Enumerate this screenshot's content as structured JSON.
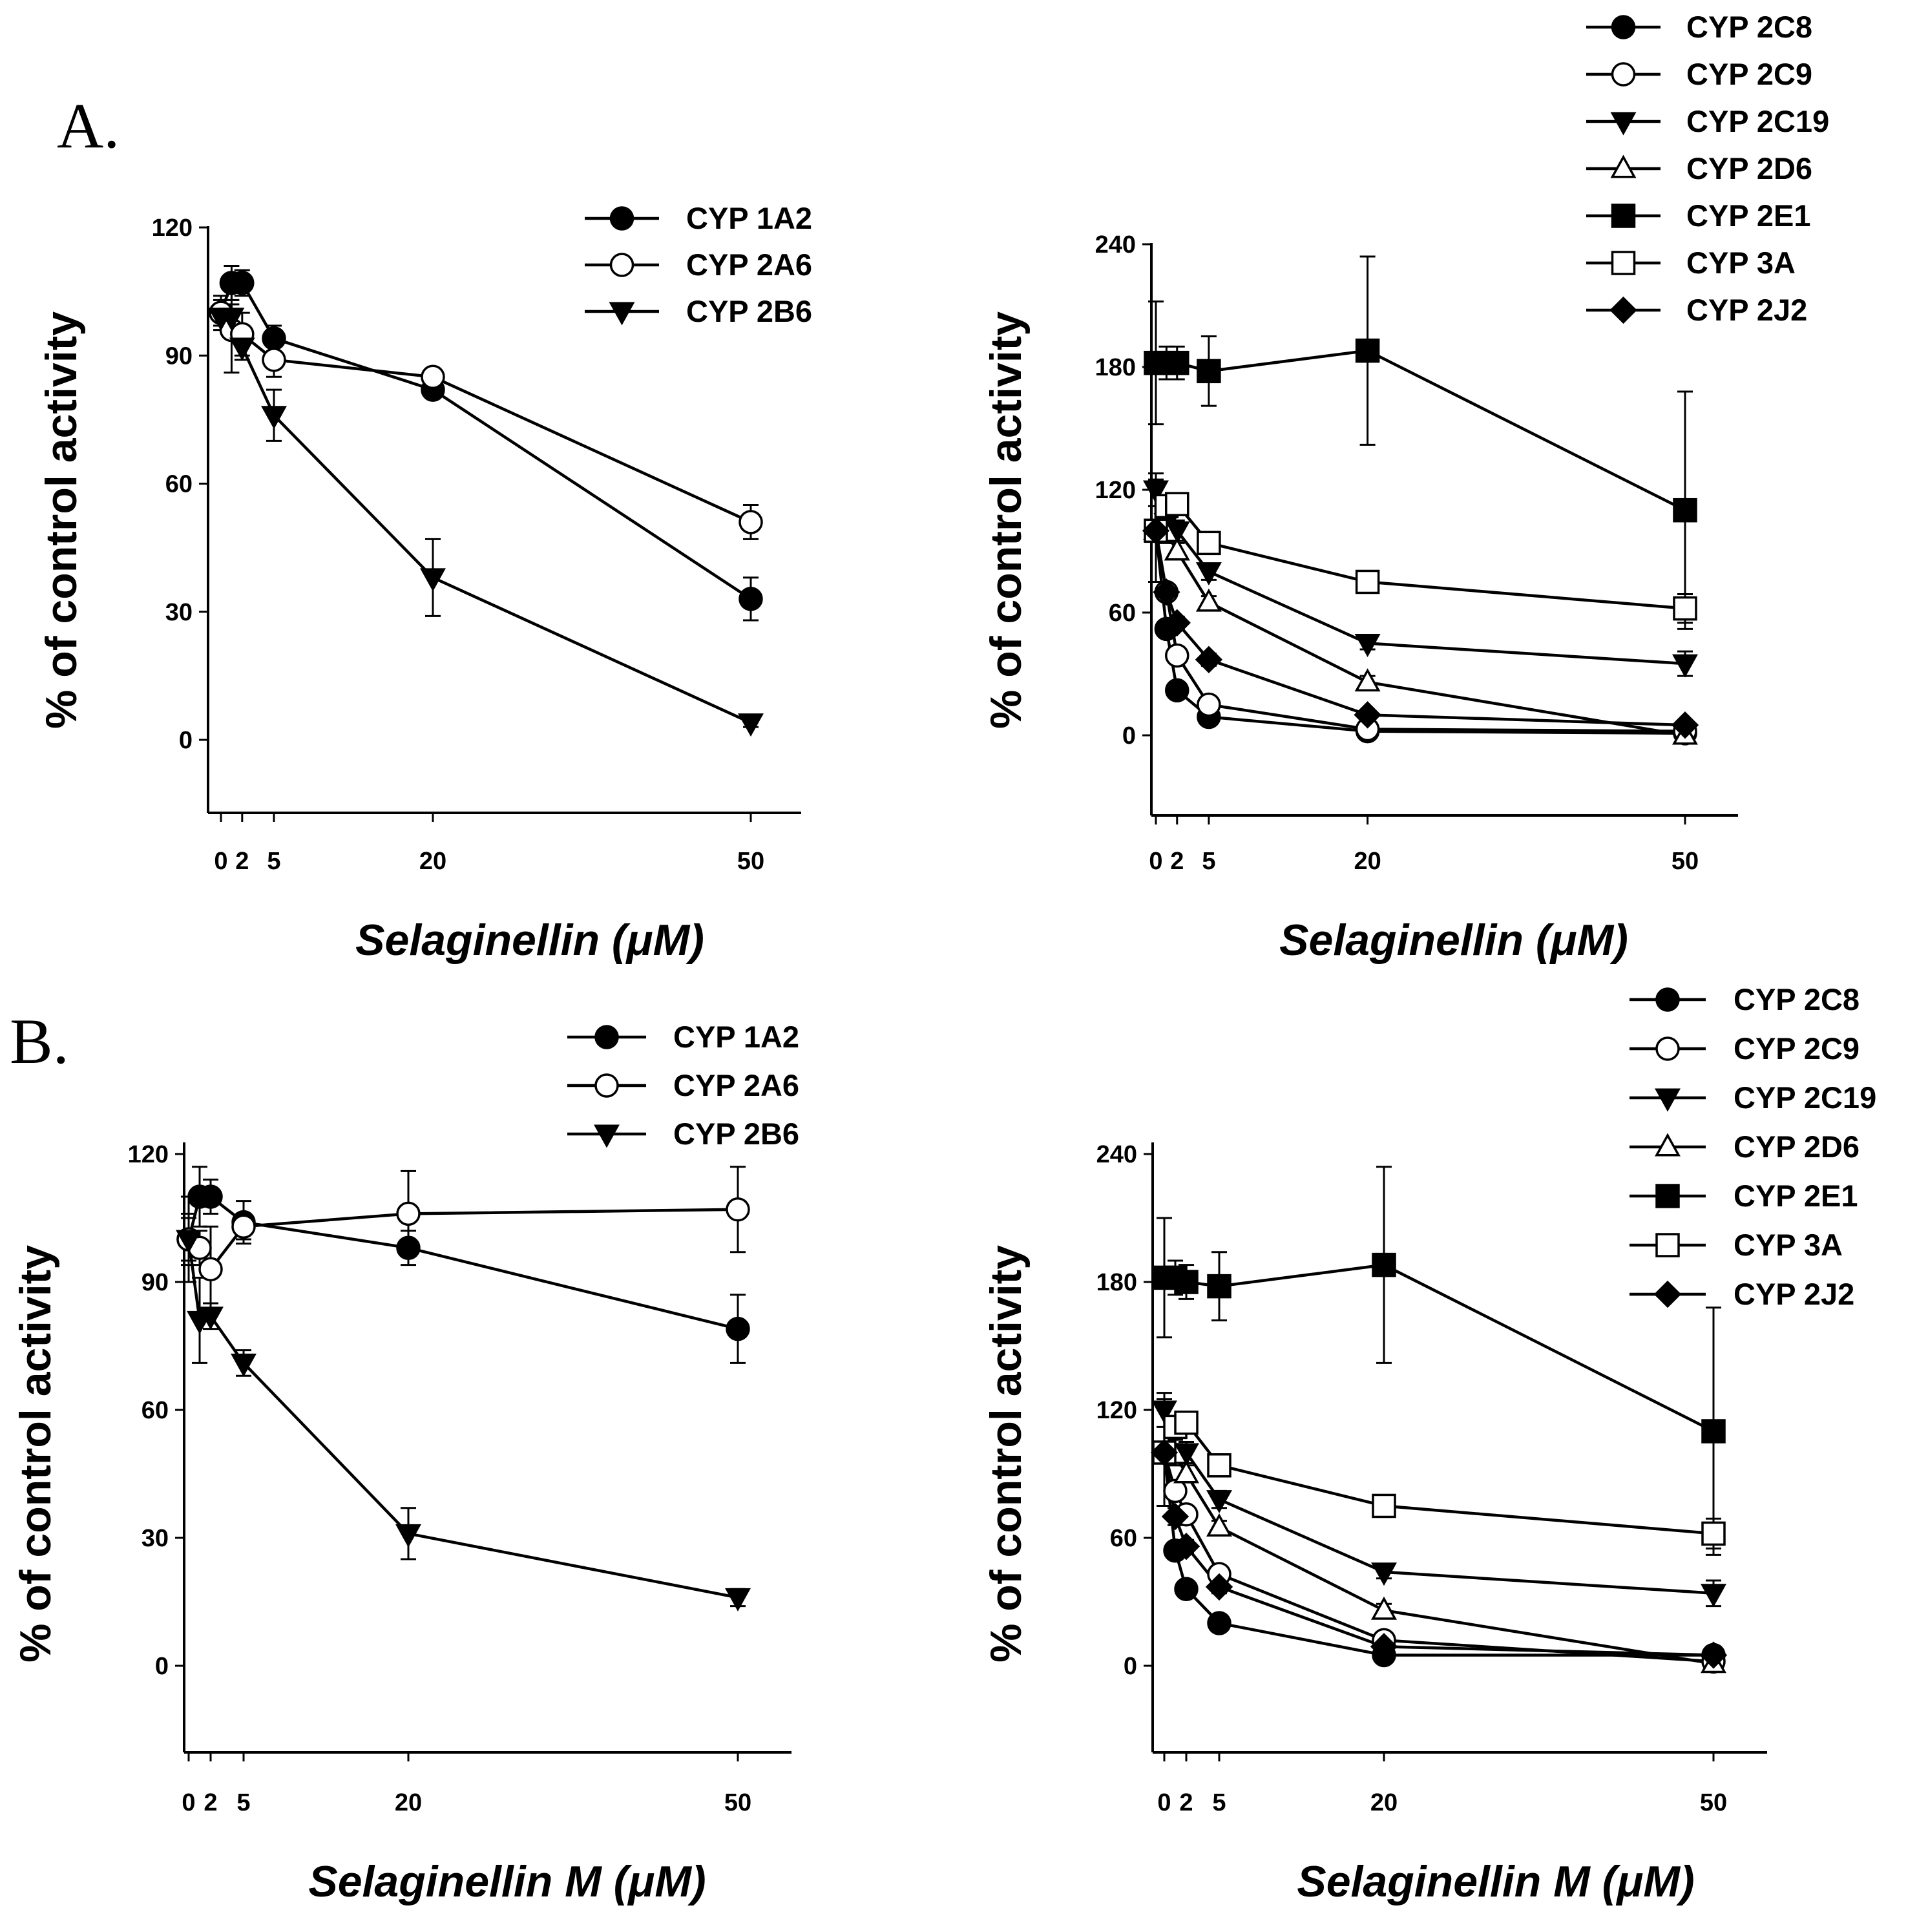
{
  "panel_labels": {
    "A": "A.",
    "B": "B."
  },
  "chart_data": [
    {
      "id": "A-left",
      "type": "line",
      "panel": "A.",
      "xlabel": "Selaginellin (μM)",
      "ylabel": "% of control activity",
      "x_ticks": [
        0,
        2,
        5,
        20,
        50
      ],
      "y_ticks": [
        0,
        30,
        60,
        90,
        120
      ],
      "xlim": [
        -1,
        55
      ],
      "ylim": [
        -18,
        120
      ],
      "legend_position": "top-right",
      "series": [
        {
          "name": "CYP 1A2",
          "marker": "circle-filled",
          "x": [
            0,
            1,
            2,
            5,
            20,
            50
          ],
          "values": [
            100,
            107,
            107,
            94,
            82,
            33
          ],
          "err": [
            4,
            4,
            3,
            3,
            2,
            5
          ]
        },
        {
          "name": "CYP 2A6",
          "marker": "circle-open",
          "x": [
            0,
            1,
            2,
            5,
            20,
            50
          ],
          "values": [
            100,
            96,
            95,
            89,
            85,
            51
          ],
          "err": [
            3,
            10,
            5,
            4,
            2,
            4
          ]
        },
        {
          "name": "CYP 2B6",
          "marker": "triangle-down-filled",
          "x": [
            0,
            1,
            2,
            5,
            20,
            50
          ],
          "values": [
            99,
            99,
            92,
            76,
            38,
            4
          ],
          "err": [
            2,
            3,
            3,
            6,
            9,
            1
          ]
        }
      ]
    },
    {
      "id": "A-right",
      "type": "line",
      "panel": "A.",
      "xlabel": "Selaginellin (μM)",
      "ylabel": "% of control activity",
      "x_ticks": [
        0,
        2,
        5,
        20,
        50
      ],
      "y_ticks": [
        0,
        60,
        120,
        180,
        240
      ],
      "xlim": [
        -1,
        55
      ],
      "ylim": [
        -40,
        240
      ],
      "legend_position": "top-right",
      "series": [
        {
          "name": "CYP 2C8",
          "marker": "circle-filled",
          "x": [
            0,
            1,
            2,
            5,
            20,
            50
          ],
          "values": [
            100,
            52,
            22,
            9,
            2,
            1
          ],
          "err": [
            4,
            4,
            3,
            2,
            1,
            1
          ]
        },
        {
          "name": "CYP 2C9",
          "marker": "circle-open",
          "x": [
            0,
            1,
            2,
            5,
            20,
            50
          ],
          "values": [
            100,
            70,
            39,
            15,
            3,
            2
          ],
          "err": [
            5,
            4,
            3,
            2,
            1,
            1
          ]
        },
        {
          "name": "CYP 2C19",
          "marker": "triangle-down-filled",
          "x": [
            0,
            1,
            2,
            5,
            20,
            50
          ],
          "values": [
            120,
            104,
            100,
            80,
            45,
            35
          ],
          "err": [
            8,
            6,
            5,
            4,
            3,
            6
          ]
        },
        {
          "name": "CYP 2D6",
          "marker": "triangle-up-open",
          "x": [
            0,
            1,
            2,
            5,
            20,
            50
          ],
          "values": [
            100,
            99,
            90,
            65,
            26,
            0
          ],
          "err": [
            5,
            5,
            4,
            3,
            3,
            1
          ]
        },
        {
          "name": "CYP 2E1",
          "marker": "square-filled",
          "x": [
            0,
            1,
            2,
            5,
            20,
            50
          ],
          "values": [
            182,
            182,
            182,
            178,
            188,
            110
          ],
          "err": [
            30,
            8,
            8,
            17,
            46,
            58
          ]
        },
        {
          "name": "CYP 3A",
          "marker": "square-open",
          "x": [
            0,
            1,
            2,
            5,
            20,
            50
          ],
          "values": [
            100,
            112,
            113,
            94,
            75,
            62
          ],
          "err": [
            25,
            5,
            4,
            4,
            4,
            7
          ]
        },
        {
          "name": "CYP 2J2",
          "marker": "diamond-filled",
          "x": [
            0,
            1,
            2,
            5,
            20,
            50
          ],
          "values": [
            100,
            70,
            55,
            37,
            10,
            5
          ],
          "err": [
            4,
            4,
            3,
            3,
            2,
            2
          ]
        }
      ]
    },
    {
      "id": "B-left",
      "type": "line",
      "panel": "B.",
      "xlabel": "Selaginellin M (μM)",
      "ylabel": "% of control activity",
      "x_ticks": [
        0,
        2,
        5,
        20,
        50
      ],
      "y_ticks": [
        0,
        30,
        60,
        90,
        120
      ],
      "xlim": [
        -1,
        55
      ],
      "ylim": [
        -20,
        125
      ],
      "legend_position": "top-right",
      "series": [
        {
          "name": "CYP 1A2",
          "marker": "circle-filled",
          "x": [
            0,
            1,
            2,
            5,
            20,
            50
          ],
          "values": [
            100,
            110,
            110,
            104,
            98,
            79
          ],
          "err": [
            6,
            7,
            4,
            5,
            4,
            8
          ]
        },
        {
          "name": "CYP 2A6",
          "marker": "circle-open",
          "x": [
            0,
            1,
            2,
            5,
            20,
            50
          ],
          "values": [
            100,
            98,
            93,
            103,
            106,
            107
          ],
          "err": [
            5,
            4,
            10,
            3,
            10,
            10
          ]
        },
        {
          "name": "CYP 2B6",
          "marker": "triangle-down-filled",
          "x": [
            0,
            1,
            2,
            5,
            20,
            50
          ],
          "values": [
            100,
            81,
            82,
            71,
            31,
            16
          ],
          "err": [
            10,
            10,
            3,
            3,
            6,
            2
          ]
        }
      ]
    },
    {
      "id": "B-right",
      "type": "line",
      "panel": "B.",
      "xlabel": "Selaginellin M (μM)",
      "ylabel": "% of control activity",
      "x_ticks": [
        0,
        2,
        5,
        20,
        50
      ],
      "y_ticks": [
        0,
        60,
        120,
        180,
        240
      ],
      "xlim": [
        -1,
        55
      ],
      "ylim": [
        -40,
        240
      ],
      "legend_position": "top-right",
      "series": [
        {
          "name": "CYP 2C8",
          "marker": "circle-filled",
          "x": [
            0,
            1,
            2,
            5,
            20,
            50
          ],
          "values": [
            100,
            54,
            36,
            20,
            5,
            5
          ],
          "err": [
            4,
            4,
            3,
            2,
            1,
            1
          ]
        },
        {
          "name": "CYP 2C9",
          "marker": "circle-open",
          "x": [
            0,
            1,
            2,
            5,
            20,
            50
          ],
          "values": [
            100,
            82,
            71,
            43,
            12,
            2
          ],
          "err": [
            5,
            4,
            4,
            3,
            2,
            1
          ]
        },
        {
          "name": "CYP 2C19",
          "marker": "triangle-down-filled",
          "x": [
            0,
            1,
            2,
            5,
            20,
            50
          ],
          "values": [
            120,
            100,
            100,
            78,
            44,
            34
          ],
          "err": [
            8,
            6,
            5,
            4,
            3,
            6
          ]
        },
        {
          "name": "CYP 2D6",
          "marker": "triangle-up-open",
          "x": [
            0,
            1,
            2,
            5,
            20,
            50
          ],
          "values": [
            100,
            99,
            90,
            65,
            26,
            1
          ],
          "err": [
            5,
            5,
            4,
            3,
            3,
            1
          ]
        },
        {
          "name": "CYP 2E1",
          "marker": "square-filled",
          "x": [
            0,
            1,
            2,
            5,
            20,
            50
          ],
          "values": [
            182,
            182,
            180,
            178,
            188,
            110
          ],
          "err": [
            28,
            8,
            8,
            16,
            46,
            58
          ]
        },
        {
          "name": "CYP 3A",
          "marker": "square-open",
          "x": [
            0,
            1,
            2,
            5,
            20,
            50
          ],
          "values": [
            100,
            112,
            114,
            94,
            75,
            62
          ],
          "err": [
            25,
            5,
            4,
            4,
            4,
            7
          ]
        },
        {
          "name": "CYP 2J2",
          "marker": "diamond-filled",
          "x": [
            0,
            1,
            2,
            5,
            20,
            50
          ],
          "values": [
            100,
            70,
            56,
            37,
            9,
            5
          ],
          "err": [
            4,
            4,
            3,
            3,
            2,
            2
          ]
        }
      ]
    }
  ]
}
